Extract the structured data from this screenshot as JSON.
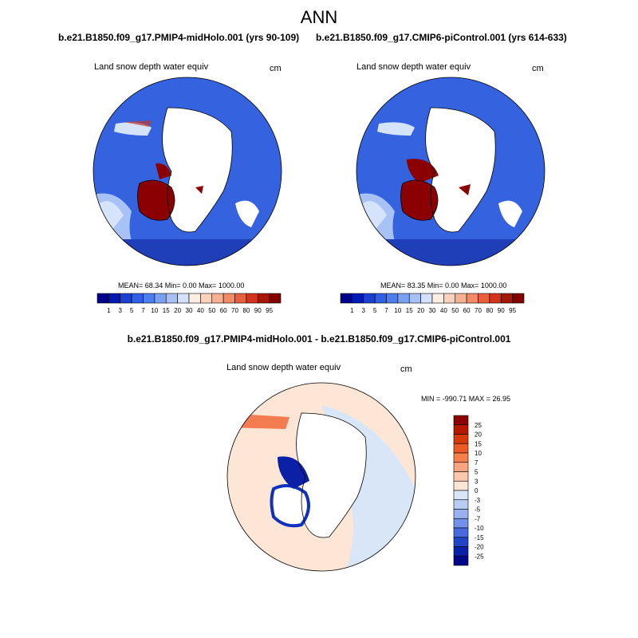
{
  "title": "ANN",
  "panels": [
    {
      "case_label": "b.e21.B1850.f09_g17.PMIP4-midHolo.001 (yrs 90-109)",
      "variable": "Land snow depth water equiv",
      "units": "cm",
      "stats": "MEAN=  68.34  Min=    0.00  Max= 1000.00"
    },
    {
      "case_label": "b.e21.B1850.f09_g17.CMIP6-piControl.001 (yrs 614-633)",
      "variable": "Land snow depth water equiv",
      "units": "cm",
      "stats": "MEAN=  83.35  Min=    0.00  Max= 1000.00"
    }
  ],
  "abs_colorbar": {
    "labels": [
      "1",
      "3",
      "5",
      "7",
      "10",
      "15",
      "20",
      "30",
      "40",
      "50",
      "60",
      "70",
      "80",
      "90",
      "95"
    ],
    "colors": [
      "#00008b",
      "#0018b4",
      "#1a3fd1",
      "#2f5fe6",
      "#4d7ef0",
      "#7aa0f2",
      "#a7c0f5",
      "#d2e2fa",
      "#fdeee2",
      "#f9d2bd",
      "#f6b194",
      "#f28b66",
      "#ea5f3b",
      "#d3331c",
      "#a81607",
      "#830000"
    ]
  },
  "difference": {
    "title": "b.e21.B1850.f09_g17.PMIP4-midHolo.001 - b.e21.B1850.f09_g17.CMIP6-piControl.001",
    "variable": "Land snow depth water equiv",
    "units": "cm",
    "minmax": "MIN = -990.71 MAX =  26.95",
    "colorbar": {
      "labels": [
        "25",
        "20",
        "15",
        "10",
        "7",
        "5",
        "3",
        "0",
        "-3",
        "-5",
        "-7",
        "-10",
        "-15",
        "-20",
        "-25"
      ],
      "colors": [
        "#8b0000",
        "#b51a00",
        "#d63a0a",
        "#ef5a24",
        "#f7804a",
        "#f9a57e",
        "#fbc8ac",
        "#fde6d6",
        "#d8e6f8",
        "#b9ccf3",
        "#98b1ef",
        "#7390ea",
        "#4a68e0",
        "#2244c9",
        "#0a20a6",
        "#00058a"
      ]
    }
  }
}
